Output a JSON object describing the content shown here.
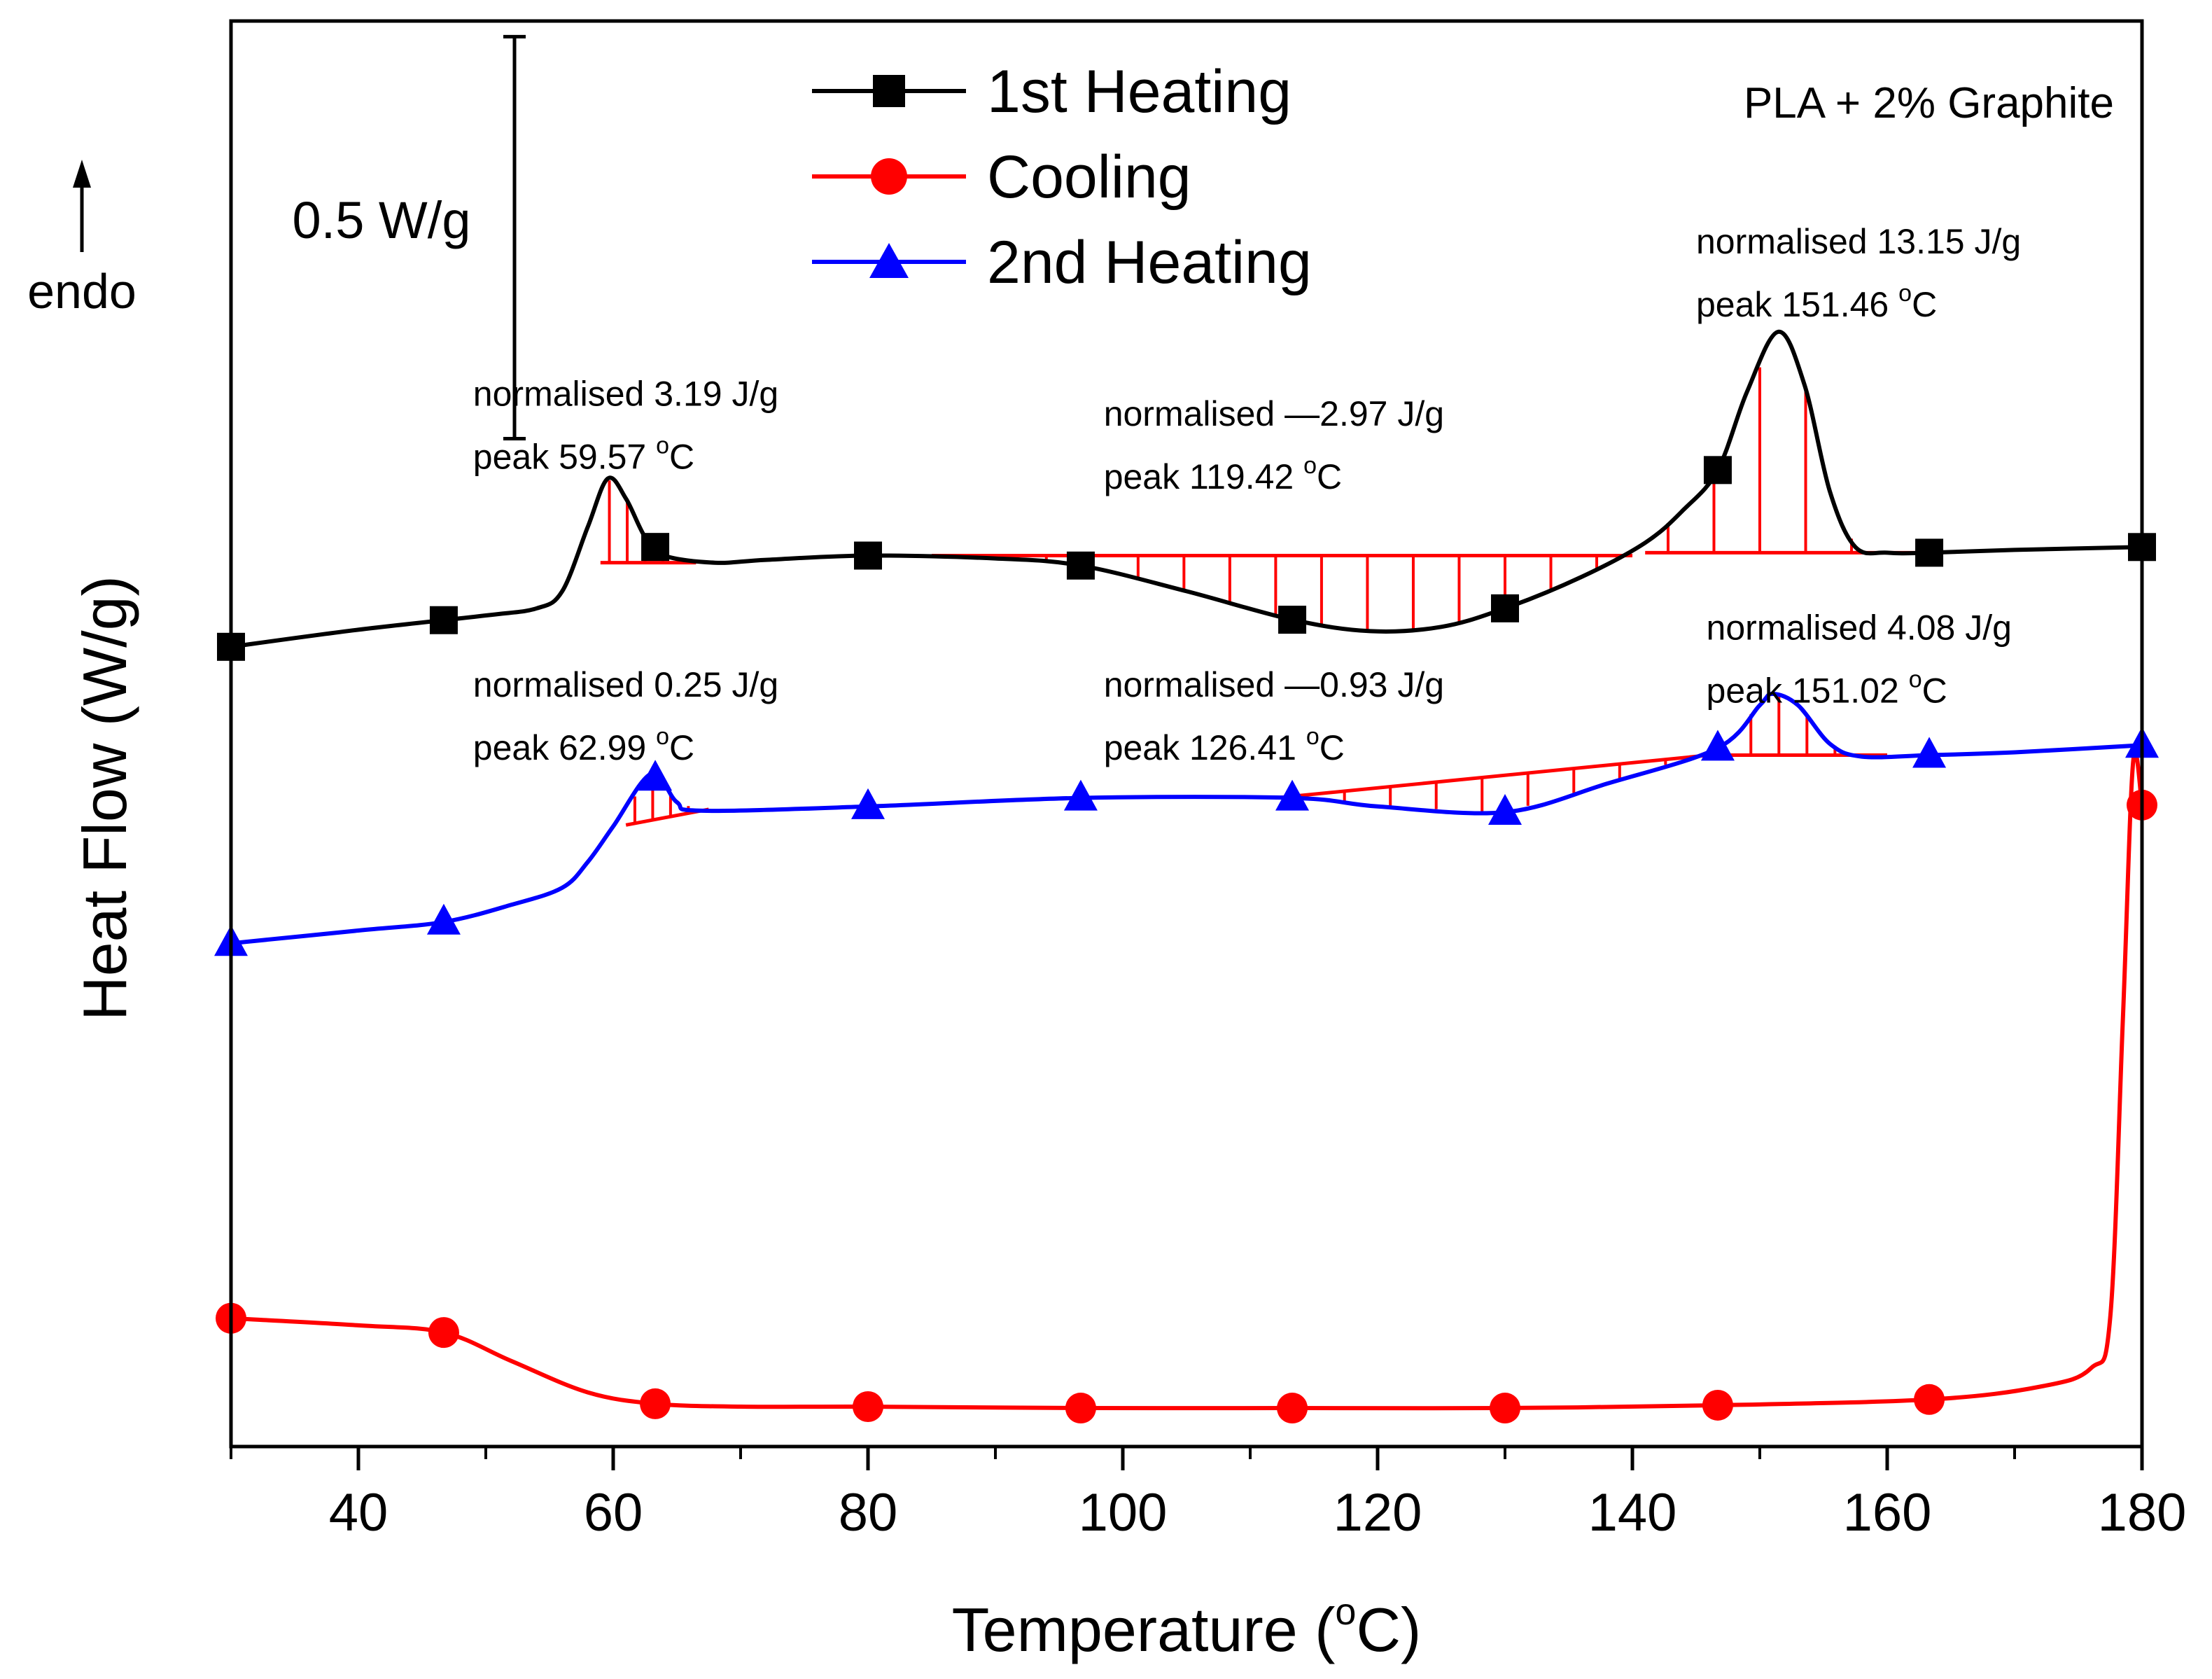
{
  "chart_data": {
    "type": "line",
    "xlabel": "Temperature (",
    "xlabel_sup": "o",
    "xlabel_end": "C)",
    "ylabel": "Heat Flow (W/g)",
    "xlim": [
      30,
      180
    ],
    "ylim": [
      0,
      10
    ],
    "x_ticks": [
      "40",
      "60",
      "80",
      "100",
      "120",
      "140",
      "160",
      "180"
    ],
    "y_ticks_shown": false,
    "note": "PLA + 2% Graphite",
    "endo_label": "endo",
    "scale_bar_label": "0.5 W/g",
    "scale_bar_range": [
      7.07,
      9.89
    ],
    "series": [
      {
        "name": "1st Heating",
        "color": "#000000",
        "marker": "square",
        "markers_x": [
          30,
          46.7,
          63.3,
          80,
          96.7,
          113.3,
          130,
          146.7,
          163.3,
          180
        ],
        "curve": [
          [
            30,
            5.61
          ],
          [
            40,
            5.73
          ],
          [
            50,
            5.83
          ],
          [
            54,
            5.88
          ],
          [
            56,
            6.0
          ],
          [
            58,
            6.45
          ],
          [
            59.57,
            6.79
          ],
          [
            61,
            6.65
          ],
          [
            62.5,
            6.38
          ],
          [
            64,
            6.25
          ],
          [
            68,
            6.2
          ],
          [
            72,
            6.22
          ],
          [
            80,
            6.25
          ],
          [
            90,
            6.23
          ],
          [
            96.7,
            6.18
          ],
          [
            105,
            6.0
          ],
          [
            113.3,
            5.8
          ],
          [
            119.42,
            5.72
          ],
          [
            125,
            5.75
          ],
          [
            130,
            5.88
          ],
          [
            136,
            6.1
          ],
          [
            141,
            6.34
          ],
          [
            144,
            6.57
          ],
          [
            146.7,
            6.85
          ],
          [
            149,
            7.4
          ],
          [
            151.46,
            7.82
          ],
          [
            153.5,
            7.45
          ],
          [
            155.5,
            6.7
          ],
          [
            157.5,
            6.31
          ],
          [
            160,
            6.27
          ],
          [
            163.3,
            6.27
          ],
          [
            170,
            6.29
          ],
          [
            180,
            6.31
          ]
        ]
      },
      {
        "name": "Cooling",
        "color": "#ff0000",
        "marker": "circle",
        "markers_x": [
          30,
          46.7,
          63.3,
          80,
          96.7,
          113.3,
          130,
          146.7,
          163.3,
          180
        ],
        "curve": [
          [
            30,
            0.9
          ],
          [
            40,
            0.85
          ],
          [
            46.7,
            0.8
          ],
          [
            52,
            0.6
          ],
          [
            58,
            0.38
          ],
          [
            63.3,
            0.3
          ],
          [
            70,
            0.28
          ],
          [
            80,
            0.28
          ],
          [
            96.7,
            0.27
          ],
          [
            113.3,
            0.27
          ],
          [
            130,
            0.27
          ],
          [
            146.7,
            0.29
          ],
          [
            163.3,
            0.33
          ],
          [
            172,
            0.42
          ],
          [
            176,
            0.55
          ],
          [
            177.5,
            0.9
          ],
          [
            178.5,
            3.0
          ],
          [
            179.3,
            4.8
          ],
          [
            180,
            4.5
          ]
        ]
      },
      {
        "name": "2nd Heating",
        "color": "#0000ff",
        "marker": "triangle",
        "markers_x": [
          30,
          46.7,
          63.3,
          80,
          96.7,
          113.3,
          130,
          146.7,
          163.3,
          180
        ],
        "curve": [
          [
            30,
            3.53
          ],
          [
            40,
            3.62
          ],
          [
            46.7,
            3.68
          ],
          [
            52,
            3.8
          ],
          [
            56,
            3.92
          ],
          [
            58,
            4.1
          ],
          [
            60,
            4.35
          ],
          [
            62.99,
            4.72
          ],
          [
            65,
            4.52
          ],
          [
            67,
            4.46
          ],
          [
            80,
            4.49
          ],
          [
            96.7,
            4.55
          ],
          [
            113.3,
            4.55
          ],
          [
            120,
            4.49
          ],
          [
            130,
            4.45
          ],
          [
            138,
            4.65
          ],
          [
            146.7,
            4.9
          ],
          [
            150,
            5.2
          ],
          [
            151.02,
            5.28
          ],
          [
            153,
            5.2
          ],
          [
            155.5,
            4.93
          ],
          [
            158,
            4.84
          ],
          [
            163.3,
            4.85
          ],
          [
            170,
            4.87
          ],
          [
            180,
            4.92
          ]
        ]
      }
    ],
    "integration_regions": [
      {
        "x1": 59.0,
        "y1": 6.2,
        "x2": 66.5,
        "y2": 6.2,
        "series": 0
      },
      {
        "x1": 85.0,
        "y1": 6.25,
        "x2": 140.0,
        "y2": 6.25,
        "series": 0
      },
      {
        "x1": 141.0,
        "y1": 6.27,
        "x2": 163.0,
        "y2": 6.27,
        "series": 0
      },
      {
        "x1": 61.0,
        "y1": 4.36,
        "x2": 67.5,
        "y2": 4.47,
        "series": 2
      },
      {
        "x1": 112.0,
        "y1": 4.55,
        "x2": 146.0,
        "y2": 4.85,
        "series": 2
      },
      {
        "x1": 146.0,
        "y1": 4.85,
        "x2": 160.0,
        "y2": 4.85,
        "series": 2
      }
    ],
    "annotations": [
      {
        "line1": "normalised  3.19 J/g",
        "line2": "peak  59.57 ",
        "sup": "o",
        "unit": "C",
        "x": 49,
        "y": 7.3
      },
      {
        "line1": "normalised —2.97 J/g",
        "line2": "peak  119.42 ",
        "sup": "o",
        "unit": "C",
        "x": 98.5,
        "y": 7.16
      },
      {
        "line1": "normalised  13.15 J/g",
        "line2": "peak  151.46 ",
        "sup": "o",
        "unit": "C",
        "x": 145,
        "y": 8.37
      },
      {
        "line1": "normalised  0.25 J/g",
        "line2": "peak  62.99 ",
        "sup": "o",
        "unit": "C",
        "x": 49,
        "y": 5.26
      },
      {
        "line1": "normalised —0.93 J/g",
        "line2": "peak  126.41 ",
        "sup": "o",
        "unit": "C",
        "x": 98.5,
        "y": 5.26
      },
      {
        "line1": "normalised  4.08 J/g",
        "line2": "peak  151.02 ",
        "sup": "o",
        "unit": "C",
        "x": 145.8,
        "y": 5.66
      }
    ],
    "legend_position": "top-center"
  }
}
